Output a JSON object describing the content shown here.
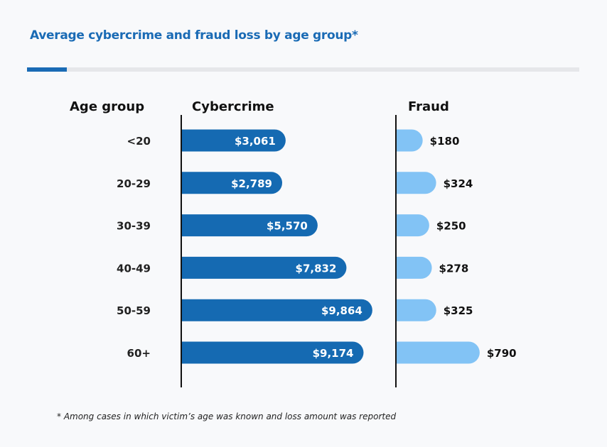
{
  "title": "Average cybercrime and fraud loss by age group*",
  "footnote": "* Among cases in which victim’s age was known and loss amount was reported",
  "colors": {
    "accent": "#1a6bb5",
    "cybercrime": "#156ab2",
    "fraud": "#82c3f5",
    "background": "#f8f9fb"
  },
  "chart_data": {
    "type": "bar",
    "orientation": "horizontal",
    "title": "Average cybercrime and fraud loss by age group*",
    "category_header": "Age group",
    "categories": [
      "<20",
      "20-29",
      "30-39",
      "40-49",
      "50-59",
      "60+"
    ],
    "series": [
      {
        "name": "Cybercrime",
        "values": [
          3061,
          2789,
          5570,
          7832,
          9864,
          9174
        ],
        "labels": [
          "$3,061",
          "$2,789",
          "$5,570",
          "$7,832",
          "$9,864",
          "$9,174"
        ]
      },
      {
        "name": "Fraud",
        "values": [
          180,
          324,
          250,
          278,
          325,
          790
        ],
        "labels": [
          "$180",
          "$324",
          "$250",
          "$278",
          "$325",
          "$790"
        ]
      }
    ],
    "grid": false,
    "legend": "none"
  }
}
